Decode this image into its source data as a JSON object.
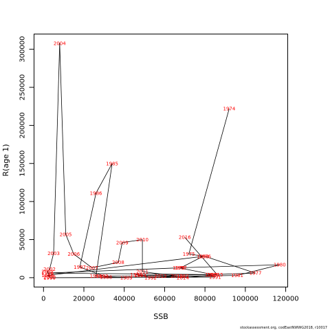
{
  "footer": "stockassessment.org, codEastNWWG2018, r10017",
  "chart_data": {
    "type": "scatter",
    "connected": true,
    "xlabel": "SSB",
    "ylabel": "R(age 1)",
    "xlim": [
      -4700,
      121000
    ],
    "ylim": [
      -12300,
      320000
    ],
    "xticks": [
      0,
      20000,
      40000,
      60000,
      80000,
      100000,
      120000
    ],
    "yticks": [
      0,
      50000,
      100000,
      150000,
      200000,
      250000,
      300000
    ],
    "line_color": "#000000",
    "label_color": "#ff0000",
    "points": [
      {
        "year": "1974",
        "ssb": 92000,
        "rec": 222000
      },
      {
        "year": "1975",
        "ssb": 72000,
        "rec": 31000
      },
      {
        "year": "1976",
        "ssb": 80000,
        "rec": 28000
      },
      {
        "year": "1977",
        "ssb": 105000,
        "rec": 6000
      },
      {
        "year": "1978",
        "ssb": 84000,
        "rec": 4000
      },
      {
        "year": "1979",
        "ssb": 67000,
        "rec": 13000
      },
      {
        "year": "1980",
        "ssb": 117000,
        "rec": 17000
      },
      {
        "year": "1981",
        "ssb": 96000,
        "rec": 3000
      },
      {
        "year": "1982",
        "ssb": 69000,
        "rec": 2000
      },
      {
        "year": "1983",
        "ssb": 29000,
        "rec": 2000
      },
      {
        "year": "1984",
        "ssb": 26000,
        "rec": 2000
      },
      {
        "year": "1985",
        "ssb": 34000,
        "rec": 150000
      },
      {
        "year": "1986",
        "ssb": 26000,
        "rec": 111000
      },
      {
        "year": "1987",
        "ssb": 18000,
        "rec": 14000
      },
      {
        "year": "1988",
        "ssb": 31000,
        "rec": 1000
      },
      {
        "year": "1989",
        "ssb": 41000,
        "rec": 0
      },
      {
        "year": "1990",
        "ssb": 3000,
        "rec": 0
      },
      {
        "year": "1991",
        "ssb": 85000,
        "rec": 1000
      },
      {
        "year": "1992",
        "ssb": 53000,
        "rec": 0
      },
      {
        "year": "1993",
        "ssb": 46000,
        "rec": 4000
      },
      {
        "year": "1994",
        "ssb": 48000,
        "rec": 3000
      },
      {
        "year": "1995",
        "ssb": 83000,
        "rec": 4000
      },
      {
        "year": "1996",
        "ssb": 2000,
        "rec": 6000
      },
      {
        "year": "1997",
        "ssb": 68000,
        "rec": 13000
      },
      {
        "year": "1998",
        "ssb": 79000,
        "rec": 28000
      },
      {
        "year": "1999",
        "ssb": 2000,
        "rec": 3000
      },
      {
        "year": "2000",
        "ssb": 3000,
        "rec": 1000
      },
      {
        "year": "2001",
        "ssb": 2000,
        "rec": 8000
      },
      {
        "year": "2002",
        "ssb": 3000,
        "rec": 11000
      },
      {
        "year": "2003",
        "ssb": 5000,
        "rec": 32000
      },
      {
        "year": "2004",
        "ssb": 8000,
        "rec": 308000
      },
      {
        "year": "2005",
        "ssb": 11000,
        "rec": 57000
      },
      {
        "year": "2006",
        "ssb": 15000,
        "rec": 31000
      },
      {
        "year": "2007",
        "ssb": 24000,
        "rec": 13000
      },
      {
        "year": "2008",
        "ssb": 37000,
        "rec": 20000
      },
      {
        "year": "2009",
        "ssb": 39000,
        "rec": 46000
      },
      {
        "year": "2010",
        "ssb": 49000,
        "rec": 50000
      },
      {
        "year": "2011",
        "ssb": 49000,
        "rec": 8000
      },
      {
        "year": "2012",
        "ssb": 66000,
        "rec": 2000
      },
      {
        "year": "2013",
        "ssb": 58000,
        "rec": 2000
      },
      {
        "year": "2014",
        "ssb": 69000,
        "rec": 0
      },
      {
        "year": "2015",
        "ssb": 86000,
        "rec": 4000
      },
      {
        "year": "2016",
        "ssb": 70000,
        "rec": 53000
      }
    ]
  }
}
